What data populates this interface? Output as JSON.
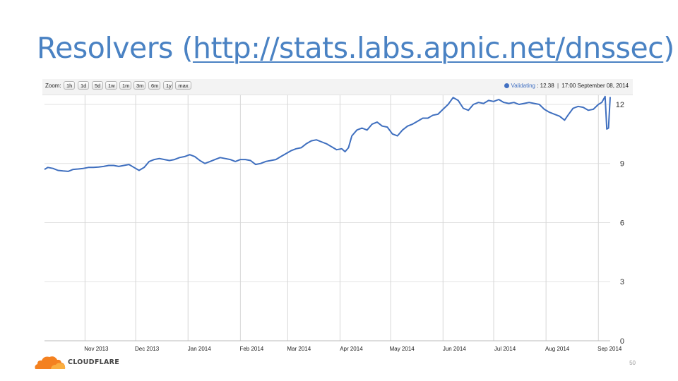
{
  "slide": {
    "title_prefix": "Resolvers (",
    "title_link": "http://stats.labs.apnic.net/dnssec",
    "title_suffix": ")",
    "page_number": "50",
    "logo_text": "CLOUDFLARE"
  },
  "toolbar": {
    "zoom_label": "Zoom:",
    "zoom_buttons": [
      "1h",
      "1d",
      "5d",
      "1w",
      "1m",
      "3m",
      "6m",
      "1y",
      "max"
    ],
    "readout_series": "Validating",
    "readout_value": ": 12.38",
    "readout_sep": "|",
    "readout_time": "17:00 September 08, 2014"
  },
  "colors": {
    "accent": "#4a82c3",
    "series": "#3f6fbf"
  },
  "chart_data": {
    "type": "line",
    "title": "",
    "xlabel": "",
    "ylabel": "",
    "ylim": [
      0,
      12.5
    ],
    "yticks": [
      0,
      3,
      6,
      9,
      12
    ],
    "x_range": [
      "2013-10-08",
      "2014-09-08"
    ],
    "x_tick_labels": [
      "Nov 2013",
      "Dec 2013",
      "Jan 2014",
      "Feb 2014",
      "Mar 2014",
      "Apr 2014",
      "May 2014",
      "Jun 2014",
      "Jul 2014",
      "Aug 2014",
      "Sep 2014"
    ],
    "x_tick_dates": [
      "2013-11-01",
      "2013-12-01",
      "2014-01-01",
      "2014-02-01",
      "2014-03-01",
      "2014-04-01",
      "2014-05-01",
      "2014-06-01",
      "2014-07-01",
      "2014-08-01",
      "2014-09-01"
    ],
    "grid": true,
    "series": [
      {
        "name": "Validating",
        "points": [
          [
            "2013-10-08",
            8.7
          ],
          [
            "2013-10-10",
            8.8
          ],
          [
            "2013-10-13",
            8.75
          ],
          [
            "2013-10-16",
            8.65
          ],
          [
            "2013-10-19",
            8.62
          ],
          [
            "2013-10-22",
            8.6
          ],
          [
            "2013-10-25",
            8.7
          ],
          [
            "2013-10-28",
            8.72
          ],
          [
            "2013-10-31",
            8.75
          ],
          [
            "2013-11-03",
            8.8
          ],
          [
            "2013-11-06",
            8.8
          ],
          [
            "2013-11-09",
            8.82
          ],
          [
            "2013-11-12",
            8.85
          ],
          [
            "2013-11-15",
            8.9
          ],
          [
            "2013-11-18",
            8.9
          ],
          [
            "2013-11-21",
            8.85
          ],
          [
            "2013-11-24",
            8.9
          ],
          [
            "2013-11-27",
            8.95
          ],
          [
            "2013-11-30",
            8.8
          ],
          [
            "2013-12-03",
            8.65
          ],
          [
            "2013-12-06",
            8.8
          ],
          [
            "2013-12-09",
            9.1
          ],
          [
            "2013-12-12",
            9.2
          ],
          [
            "2013-12-15",
            9.25
          ],
          [
            "2013-12-18",
            9.2
          ],
          [
            "2013-12-21",
            9.15
          ],
          [
            "2013-12-24",
            9.2
          ],
          [
            "2013-12-27",
            9.3
          ],
          [
            "2013-12-30",
            9.35
          ],
          [
            "2014-01-02",
            9.45
          ],
          [
            "2014-01-05",
            9.35
          ],
          [
            "2014-01-08",
            9.15
          ],
          [
            "2014-01-11",
            9.0
          ],
          [
            "2014-01-14",
            9.1
          ],
          [
            "2014-01-17",
            9.2
          ],
          [
            "2014-01-20",
            9.3
          ],
          [
            "2014-01-23",
            9.25
          ],
          [
            "2014-01-26",
            9.2
          ],
          [
            "2014-01-29",
            9.1
          ],
          [
            "2014-02-01",
            9.2
          ],
          [
            "2014-02-04",
            9.2
          ],
          [
            "2014-02-07",
            9.15
          ],
          [
            "2014-02-10",
            8.95
          ],
          [
            "2014-02-13",
            9.0
          ],
          [
            "2014-02-16",
            9.1
          ],
          [
            "2014-02-19",
            9.15
          ],
          [
            "2014-02-22",
            9.2
          ],
          [
            "2014-02-25",
            9.35
          ],
          [
            "2014-02-28",
            9.5
          ],
          [
            "2014-03-03",
            9.65
          ],
          [
            "2014-03-06",
            9.75
          ],
          [
            "2014-03-09",
            9.8
          ],
          [
            "2014-03-12",
            10.0
          ],
          [
            "2014-03-15",
            10.15
          ],
          [
            "2014-03-18",
            10.2
          ],
          [
            "2014-03-21",
            10.1
          ],
          [
            "2014-03-24",
            10.0
          ],
          [
            "2014-03-27",
            9.85
          ],
          [
            "2014-03-30",
            9.7
          ],
          [
            "2014-04-02",
            9.75
          ],
          [
            "2014-04-04",
            9.6
          ],
          [
            "2014-04-06",
            9.8
          ],
          [
            "2014-04-08",
            10.4
          ],
          [
            "2014-04-11",
            10.7
          ],
          [
            "2014-04-14",
            10.8
          ],
          [
            "2014-04-17",
            10.7
          ],
          [
            "2014-04-20",
            11.0
          ],
          [
            "2014-04-23",
            11.1
          ],
          [
            "2014-04-26",
            10.9
          ],
          [
            "2014-04-29",
            10.85
          ],
          [
            "2014-05-02",
            10.5
          ],
          [
            "2014-05-05",
            10.4
          ],
          [
            "2014-05-08",
            10.7
          ],
          [
            "2014-05-11",
            10.9
          ],
          [
            "2014-05-14",
            11.0
          ],
          [
            "2014-05-17",
            11.15
          ],
          [
            "2014-05-20",
            11.3
          ],
          [
            "2014-05-23",
            11.3
          ],
          [
            "2014-05-26",
            11.45
          ],
          [
            "2014-05-29",
            11.5
          ],
          [
            "2014-06-01",
            11.75
          ],
          [
            "2014-06-04",
            12.0
          ],
          [
            "2014-06-07",
            12.35
          ],
          [
            "2014-06-10",
            12.2
          ],
          [
            "2014-06-13",
            11.8
          ],
          [
            "2014-06-16",
            11.7
          ],
          [
            "2014-06-19",
            12.0
          ],
          [
            "2014-06-22",
            12.1
          ],
          [
            "2014-06-25",
            12.05
          ],
          [
            "2014-06-28",
            12.2
          ],
          [
            "2014-07-01",
            12.15
          ],
          [
            "2014-07-04",
            12.25
          ],
          [
            "2014-07-07",
            12.1
          ],
          [
            "2014-07-10",
            12.05
          ],
          [
            "2014-07-13",
            12.1
          ],
          [
            "2014-07-16",
            12.0
          ],
          [
            "2014-07-19",
            12.05
          ],
          [
            "2014-07-22",
            12.1
          ],
          [
            "2014-07-25",
            12.05
          ],
          [
            "2014-07-28",
            12.0
          ],
          [
            "2014-07-31",
            11.75
          ],
          [
            "2014-08-03",
            11.6
          ],
          [
            "2014-08-06",
            11.5
          ],
          [
            "2014-08-09",
            11.4
          ],
          [
            "2014-08-12",
            11.2
          ],
          [
            "2014-08-14",
            11.45
          ],
          [
            "2014-08-17",
            11.8
          ],
          [
            "2014-08-20",
            11.9
          ],
          [
            "2014-08-23",
            11.85
          ],
          [
            "2014-08-26",
            11.7
          ],
          [
            "2014-08-29",
            11.75
          ],
          [
            "2014-09-01",
            12.0
          ],
          [
            "2014-09-03",
            12.1
          ],
          [
            "2014-09-05",
            12.4
          ],
          [
            "2014-09-06",
            10.75
          ],
          [
            "2014-09-07",
            10.8
          ],
          [
            "2014-09-08",
            12.38
          ]
        ]
      }
    ]
  }
}
